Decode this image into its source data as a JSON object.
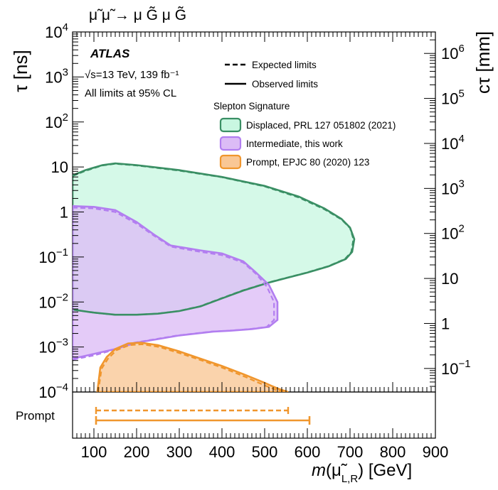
{
  "chart_data": {
    "type": "area",
    "process": "μ̃ μ̃ → μ G̃ μ G̃",
    "experiment": "ATLAS",
    "energy_lumi": "√s=13 TeV, 139 fb⁻¹",
    "cl_note": "All limits at 95% CL",
    "xlabel": "m(μ̃L,R) [GeV]",
    "xlabel_parts": {
      "m": "m",
      "open": "(",
      "particle": "μ̃",
      "sub": "L,R",
      "unit": ") [GeV]"
    },
    "ylabel": "τ [ns]",
    "y2label": "cτ [mm]",
    "xlim": [
      50,
      900
    ],
    "ylim": [
      0.0001,
      10000
    ],
    "yscale": "log",
    "x_ticks": [
      "100",
      "200",
      "300",
      "400",
      "500",
      "600",
      "700",
      "800",
      "900"
    ],
    "y_ticks": [
      {
        "base": "10",
        "exp": "−4"
      },
      {
        "base": "10",
        "exp": "−3"
      },
      {
        "base": "10",
        "exp": "−2"
      },
      {
        "base": "10",
        "exp": "−1"
      },
      {
        "base": "1",
        "exp": ""
      },
      {
        "base": "10",
        "exp": ""
      },
      {
        "base": "10",
        "exp": "2"
      },
      {
        "base": "10",
        "exp": "3"
      },
      {
        "base": "10",
        "exp": "4"
      }
    ],
    "y2_ticks": [
      {
        "base": "10",
        "exp": "−1"
      },
      {
        "base": "1",
        "exp": ""
      },
      {
        "base": "10",
        "exp": ""
      },
      {
        "base": "10",
        "exp": "2"
      },
      {
        "base": "10",
        "exp": "3"
      },
      {
        "base": "10",
        "exp": "4"
      },
      {
        "base": "10",
        "exp": "5"
      },
      {
        "base": "10",
        "exp": "6"
      }
    ],
    "legend_styles": {
      "expected": "Expected limits",
      "observed": "Observed limits"
    },
    "legend_title": "Slepton Signature",
    "series": [
      {
        "name": "Displaced, PRL 127 051802 (2021)",
        "fill": "#c9f7e1",
        "line": "#3a8f64",
        "observed": [
          [
            50,
            6.5
          ],
          [
            80,
            8.5
          ],
          [
            120,
            11
          ],
          [
            150,
            12
          ],
          [
            200,
            11
          ],
          [
            300,
            8.5
          ],
          [
            400,
            6
          ],
          [
            500,
            3.8
          ],
          [
            580,
            2.2
          ],
          [
            640,
            1.2
          ],
          [
            680,
            0.7
          ],
          [
            700,
            0.45
          ],
          [
            710,
            0.25
          ],
          [
            705,
            0.13
          ],
          [
            690,
            0.09
          ],
          [
            650,
            0.062
          ],
          [
            600,
            0.045
          ],
          [
            550,
            0.034
          ],
          [
            510,
            0.027
          ],
          [
            480,
            0.022
          ],
          [
            450,
            0.018
          ],
          [
            400,
            0.012
          ],
          [
            350,
            0.008
          ],
          [
            300,
            0.0063
          ],
          [
            250,
            0.0055
          ],
          [
            200,
            0.0052
          ],
          [
            150,
            0.0052
          ],
          [
            100,
            0.0058
          ],
          [
            50,
            0.0068
          ]
        ],
        "expected": [
          [
            50,
            6.3
          ],
          [
            80,
            8.2
          ],
          [
            120,
            10.8
          ],
          [
            150,
            11.8
          ],
          [
            200,
            10.8
          ],
          [
            300,
            8.3
          ],
          [
            400,
            5.9
          ],
          [
            500,
            3.7
          ],
          [
            580,
            2.1
          ],
          [
            640,
            1.15
          ],
          [
            680,
            0.68
          ],
          [
            700,
            0.44
          ],
          [
            708,
            0.25
          ],
          [
            703,
            0.13
          ],
          [
            688,
            0.09
          ],
          [
            648,
            0.062
          ],
          [
            598,
            0.045
          ],
          [
            548,
            0.034
          ],
          [
            508,
            0.027
          ],
          [
            478,
            0.022
          ],
          [
            448,
            0.018
          ],
          [
            398,
            0.012
          ],
          [
            348,
            0.008
          ],
          [
            298,
            0.0063
          ],
          [
            248,
            0.0055
          ],
          [
            198,
            0.0052
          ],
          [
            148,
            0.0052
          ],
          [
            98,
            0.0058
          ],
          [
            50,
            0.0068
          ]
        ]
      },
      {
        "name": "Intermediate, this work",
        "fill": "#dcbcf6",
        "line": "#b27ef0",
        "observed": [
          [
            50,
            1.35
          ],
          [
            100,
            1.3
          ],
          [
            150,
            1.1
          ],
          [
            200,
            0.6
          ],
          [
            240,
            0.32
          ],
          [
            280,
            0.18
          ],
          [
            350,
            0.14
          ],
          [
            400,
            0.12
          ],
          [
            450,
            0.08
          ],
          [
            480,
            0.045
          ],
          [
            510,
            0.024
          ],
          [
            530,
            0.01
          ],
          [
            530,
            0.004
          ],
          [
            510,
            0.0028
          ],
          [
            470,
            0.0025
          ],
          [
            420,
            0.0023
          ],
          [
            380,
            0.0022
          ],
          [
            300,
            0.0018
          ],
          [
            250,
            0.0015
          ],
          [
            200,
            0.00125
          ],
          [
            150,
            0.0009
          ],
          [
            100,
            0.0007
          ],
          [
            50,
            0.00055
          ]
        ],
        "expected": [
          [
            50,
            1.25
          ],
          [
            100,
            1.2
          ],
          [
            150,
            1.0
          ],
          [
            200,
            0.55
          ],
          [
            240,
            0.3
          ],
          [
            280,
            0.17
          ],
          [
            350,
            0.13
          ],
          [
            400,
            0.11
          ],
          [
            450,
            0.075
          ],
          [
            480,
            0.042
          ],
          [
            505,
            0.022
          ],
          [
            522,
            0.01
          ],
          [
            522,
            0.004
          ],
          [
            505,
            0.0028
          ],
          [
            465,
            0.0025
          ],
          [
            415,
            0.0023
          ],
          [
            375,
            0.0022
          ],
          [
            295,
            0.0018
          ],
          [
            245,
            0.0015
          ],
          [
            195,
            0.00125
          ],
          [
            145,
            0.00085
          ],
          [
            100,
            0.00065
          ],
          [
            50,
            0.00052
          ]
        ]
      },
      {
        "name": "Prompt, EPJC 80 (2020) 123",
        "fill": "#f9c795",
        "line": "#f0962d",
        "observed": [
          [
            108,
            0.0001
          ],
          [
            115,
            0.00035
          ],
          [
            130,
            0.0006
          ],
          [
            150,
            0.0009
          ],
          [
            180,
            0.0012
          ],
          [
            210,
            0.00125
          ],
          [
            250,
            0.0011
          ],
          [
            300,
            0.0008
          ],
          [
            350,
            0.00055
          ],
          [
            400,
            0.00038
          ],
          [
            450,
            0.00025
          ],
          [
            500,
            0.00016
          ],
          [
            530,
            0.00012
          ],
          [
            555,
            0.0001
          ]
        ],
        "expected": [
          [
            110,
            0.0001
          ],
          [
            118,
            0.00033
          ],
          [
            133,
            0.00055
          ],
          [
            153,
            0.00085
          ],
          [
            183,
            0.0011
          ],
          [
            213,
            0.00115
          ],
          [
            253,
            0.001
          ],
          [
            303,
            0.00072
          ],
          [
            353,
            0.0005
          ],
          [
            403,
            0.00034
          ],
          [
            453,
            0.00022
          ],
          [
            500,
            0.00014
          ],
          [
            528,
            0.00011
          ],
          [
            548,
            0.0001
          ]
        ]
      }
    ],
    "prompt_label": "Prompt",
    "prompt_bands": {
      "expected": [
        105,
        555
      ],
      "observed": [
        105,
        605
      ],
      "color": "#f0962d"
    }
  }
}
